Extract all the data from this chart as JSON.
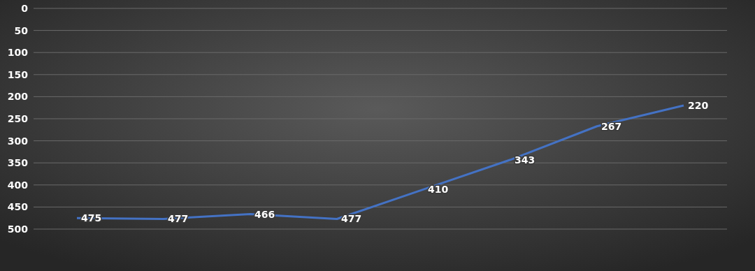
{
  "chart_data": {
    "type": "line",
    "categories": [
      null,
      null,
      null,
      null,
      null,
      null,
      null,
      null
    ],
    "series": [
      {
        "color": "#4472c4",
        "values": [
          475,
          477,
          466,
          477,
          410,
          343,
          267,
          220
        ]
      }
    ],
    "ylim": [
      500,
      0
    ],
    "yticks": [
      0,
      50,
      100,
      150,
      200,
      250,
      300,
      350,
      400,
      450,
      500
    ],
    "grid": "y",
    "data_labels": true,
    "marker": "none",
    "line_style": "solid"
  }
}
